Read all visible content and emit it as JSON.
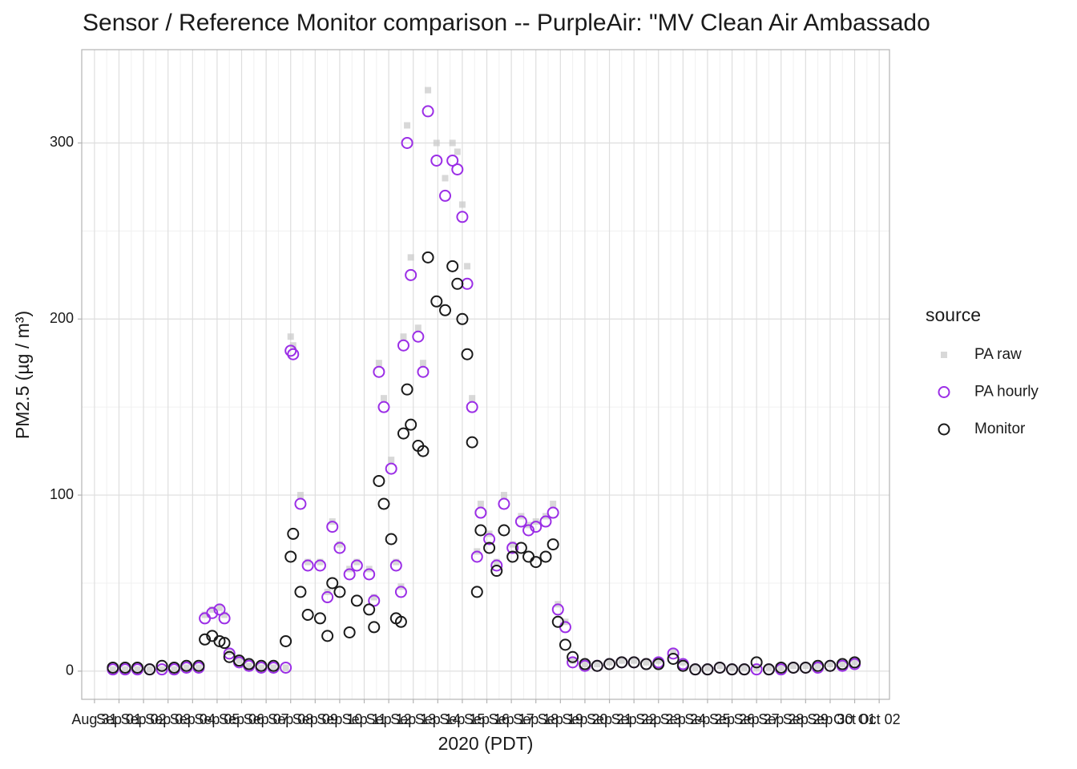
{
  "chart_data": {
    "type": "scatter",
    "title": "Sensor / Reference Monitor comparison -- PurpleAir: \"MV Clean Air Ambassado",
    "x_label": "2020 (PDT)",
    "y_label": "PM2.5 (µg / m³)",
    "legend_title": "source",
    "grid": true,
    "xlim": [
      -0.52,
      32.42
    ],
    "ylim": [
      -16,
      353
    ],
    "yticks": [
      0,
      100,
      200,
      300
    ],
    "xticks": [
      {
        "value": 0,
        "label": "Aug 31"
      },
      {
        "value": 1,
        "label": "Sep 01"
      },
      {
        "value": 2,
        "label": "Sep 02"
      },
      {
        "value": 3,
        "label": "Sep 03"
      },
      {
        "value": 4,
        "label": "Sep 04"
      },
      {
        "value": 5,
        "label": "Sep 05"
      },
      {
        "value": 6,
        "label": "Sep 06"
      },
      {
        "value": 7,
        "label": "Sep 07"
      },
      {
        "value": 8,
        "label": "Sep 08"
      },
      {
        "value": 9,
        "label": "Sep 09"
      },
      {
        "value": 10,
        "label": "Sep 10"
      },
      {
        "value": 11,
        "label": "Sep 11"
      },
      {
        "value": 12,
        "label": "Sep 12"
      },
      {
        "value": 13,
        "label": "Sep 13"
      },
      {
        "value": 14,
        "label": "Sep 14"
      },
      {
        "value": 15,
        "label": "Sep 15"
      },
      {
        "value": 16,
        "label": "Sep 16"
      },
      {
        "value": 17,
        "label": "Sep 17"
      },
      {
        "value": 18,
        "label": "Sep 18"
      },
      {
        "value": 19,
        "label": "Sep 19"
      },
      {
        "value": 20,
        "label": "Sep 20"
      },
      {
        "value": 21,
        "label": "Sep 21"
      },
      {
        "value": 22,
        "label": "Sep 22"
      },
      {
        "value": 23,
        "label": "Sep 23"
      },
      {
        "value": 24,
        "label": "Sep 24"
      },
      {
        "value": 25,
        "label": "Sep 25"
      },
      {
        "value": 26,
        "label": "Sep 26"
      },
      {
        "value": 27,
        "label": "Sep 27"
      },
      {
        "value": 28,
        "label": "Sep 28"
      },
      {
        "value": 29,
        "label": "Sep 29"
      },
      {
        "value": 30,
        "label": "Sep 30"
      },
      {
        "value": 31,
        "label": "Oct 01"
      },
      {
        "value": 32,
        "label": "Oct 02"
      }
    ],
    "x": [
      0.75,
      1.25,
      1.75,
      2.25,
      2.75,
      3.25,
      3.75,
      4.25,
      4.5,
      4.8,
      5.1,
      5.3,
      5.5,
      5.9,
      6.3,
      6.8,
      7.3,
      7.8,
      8.0,
      8.1,
      8.4,
      8.7,
      9.2,
      9.5,
      9.7,
      10.0,
      10.4,
      10.7,
      11.2,
      11.4,
      11.6,
      11.8,
      12.1,
      12.3,
      12.5,
      12.6,
      12.75,
      12.9,
      13.2,
      13.4,
      13.6,
      13.95,
      14.3,
      14.6,
      14.8,
      15.0,
      15.2,
      15.4,
      15.6,
      15.75,
      16.1,
      16.4,
      16.7,
      17.05,
      17.4,
      17.7,
      18.0,
      18.4,
      18.7,
      18.9,
      19.2,
      19.5,
      20.0,
      20.5,
      21.0,
      21.5,
      22.0,
      22.5,
      23.0,
      23.6,
      24.0,
      24.5,
      25.0,
      25.5,
      26.0,
      26.5,
      27.0,
      27.5,
      28.0,
      28.5,
      29.0,
      29.5,
      30.0,
      30.5,
      31.0
    ],
    "series": [
      {
        "name": "PA raw",
        "color": "#c8c8c8",
        "shape": "square",
        "values": [
          1,
          1,
          1,
          1,
          1,
          1,
          2,
          2,
          32,
          35,
          36,
          32,
          11,
          6,
          3,
          2,
          2,
          2,
          190,
          185,
          100,
          62,
          62,
          45,
          85,
          72,
          58,
          62,
          58,
          42,
          175,
          155,
          120,
          62,
          48,
          190,
          310,
          235,
          195,
          175,
          330,
          300,
          280,
          300,
          295,
          265,
          230,
          155,
          68,
          95,
          78,
          62,
          100,
          72,
          88,
          83,
          85,
          88,
          95,
          38,
          28,
          6,
          4,
          4,
          5,
          6,
          6,
          5,
          6,
          11,
          5,
          2,
          2,
          3,
          2,
          2,
          2,
          2,
          2,
          3,
          3,
          3,
          4,
          4,
          5
        ]
      },
      {
        "name": "PA hourly",
        "color": "#9b2ee6",
        "shape": "circle",
        "values": [
          1,
          1,
          1,
          1,
          1,
          1,
          2,
          2,
          30,
          33,
          35,
          30,
          10,
          5,
          3,
          2,
          2,
          2,
          182,
          180,
          95,
          60,
          60,
          42,
          82,
          70,
          55,
          60,
          55,
          40,
          170,
          150,
          115,
          60,
          45,
          185,
          300,
          225,
          190,
          170,
          318,
          290,
          270,
          290,
          285,
          258,
          220,
          150,
          65,
          90,
          75,
          60,
          95,
          70,
          85,
          80,
          82,
          85,
          90,
          35,
          25,
          5,
          3,
          3,
          4,
          5,
          5,
          4,
          5,
          10,
          4,
          1,
          1,
          2,
          1,
          1,
          1,
          1,
          1,
          2,
          2,
          2,
          3,
          3,
          4
        ]
      },
      {
        "name": "Monitor",
        "color": "#1a1a1a",
        "shape": "circle",
        "values": [
          2,
          2,
          2,
          1,
          3,
          2,
          3,
          3,
          18,
          20,
          17,
          16,
          8,
          6,
          4,
          3,
          3,
          17,
          65,
          78,
          45,
          32,
          30,
          20,
          50,
          45,
          22,
          40,
          35,
          25,
          108,
          95,
          75,
          30,
          28,
          135,
          160,
          140,
          128,
          125,
          235,
          210,
          205,
          230,
          220,
          200,
          180,
          130,
          45,
          80,
          70,
          57,
          80,
          65,
          70,
          65,
          62,
          65,
          72,
          28,
          15,
          8,
          4,
          3,
          4,
          5,
          5,
          4,
          4,
          7,
          3,
          1,
          1,
          2,
          1,
          1,
          5,
          1,
          2,
          2,
          2,
          3,
          3,
          4,
          5
        ]
      }
    ]
  }
}
